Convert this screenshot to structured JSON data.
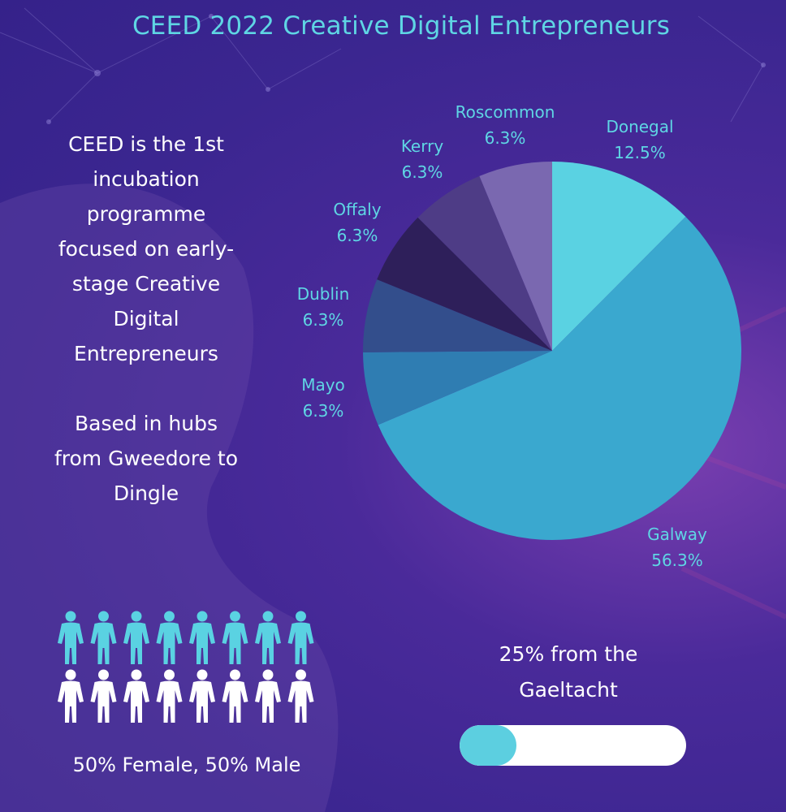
{
  "title": "CEED 2022 Creative Digital Entrepreneurs",
  "intro_text": "CEED is the 1st incubation programme focused on early-stage Creative Digital Entrepreneurs",
  "hubs_text": "Based in hubs from Gweedore to Dingle",
  "chart_data": {
    "type": "pie",
    "title": "",
    "slices": [
      {
        "label": "Donegal",
        "value": 12.5,
        "display": "12.5%",
        "color": "#5ad2e2"
      },
      {
        "label": "Galway",
        "value": 56.3,
        "display": "56.3%",
        "color": "#3aa8cf"
      },
      {
        "label": "Mayo",
        "value": 6.3,
        "display": "6.3%",
        "color": "#2f7db2"
      },
      {
        "label": "Dublin",
        "value": 6.3,
        "display": "6.3%",
        "color": "#334e8c"
      },
      {
        "label": "Offaly",
        "value": 6.3,
        "display": "6.3%",
        "color": "#2e1f5a"
      },
      {
        "label": "Kerry",
        "value": 6.3,
        "display": "6.3%",
        "color": "#4e3c86"
      },
      {
        "label": "Roscommon",
        "value": 6.3,
        "display": "6.3%",
        "color": "#7a68b0"
      }
    ]
  },
  "gender": {
    "female_share": 50,
    "male_share": 50,
    "female_color": "#5ad2e2",
    "male_color": "#ffffff",
    "label": "50% Female, 50% Male"
  },
  "gaeltacht": {
    "text": "25% from the Gaeltacht",
    "progress_percent": 25,
    "fill_color": "#5ccfe0"
  }
}
